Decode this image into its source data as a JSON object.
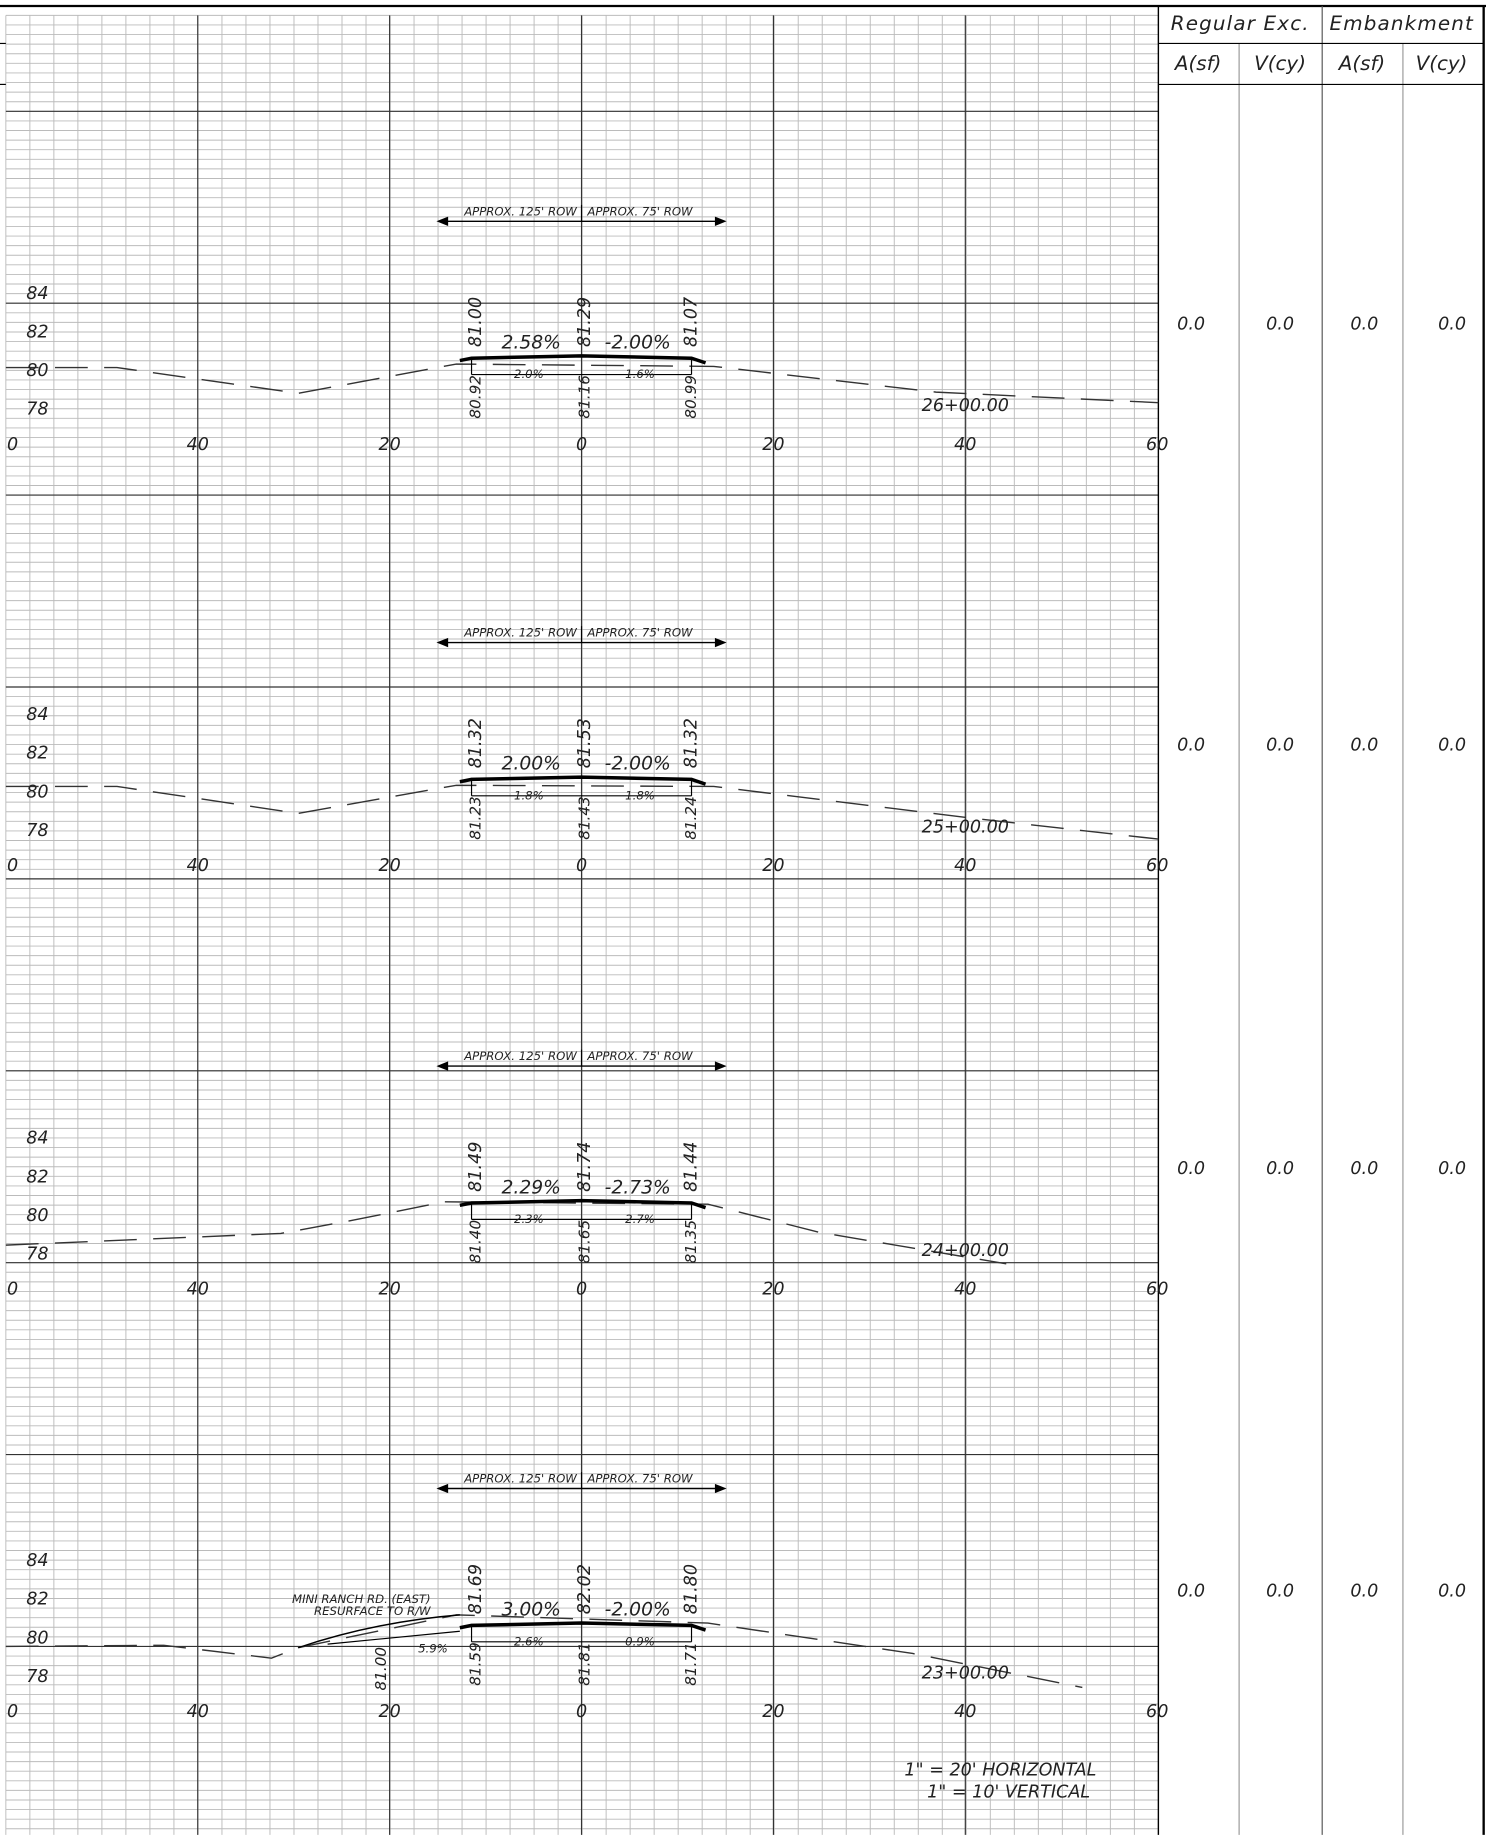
{
  "table": {
    "headers": [
      "Regular Exc.",
      "Embankment"
    ],
    "subheaders": [
      "A(sf)",
      "V(cy)",
      "A(sf)",
      "V(cy)"
    ]
  },
  "sections": [
    {
      "station": "26+00.00",
      "row_left": "APPROX. 125' ROW",
      "row_right": "APPROX. 75' ROW",
      "elevation_labels": [
        "84",
        "82",
        "80",
        "78"
      ],
      "offset_labels": [
        "0",
        "40",
        "20",
        "0",
        "20",
        "40",
        "60"
      ],
      "top_slopes": [
        "2.58%",
        "-2.00%"
      ],
      "bottom_slopes": [
        "2.0%",
        "1.6%"
      ],
      "top_elevations": [
        "81.00",
        "81.29",
        "81.07"
      ],
      "bottom_elevations": [
        "80.92",
        "81.16",
        "80.99"
      ],
      "quantities": [
        "0.0",
        "0.0",
        "0.0",
        "0.0"
      ]
    },
    {
      "station": "25+00.00",
      "row_left": "APPROX. 125' ROW",
      "row_right": "APPROX. 75' ROW",
      "elevation_labels": [
        "84",
        "82",
        "80",
        "78"
      ],
      "offset_labels": [
        "0",
        "40",
        "20",
        "0",
        "20",
        "40",
        "60"
      ],
      "top_slopes": [
        "2.00%",
        "-2.00%"
      ],
      "bottom_slopes": [
        "1.8%",
        "1.8%"
      ],
      "top_elevations": [
        "81.32",
        "81.53",
        "81.32"
      ],
      "bottom_elevations": [
        "81.23",
        "81.43",
        "81.24"
      ],
      "quantities": [
        "0.0",
        "0.0",
        "0.0",
        "0.0"
      ]
    },
    {
      "station": "24+00.00",
      "row_left": "APPROX. 125' ROW",
      "row_right": "APPROX. 75' ROW",
      "elevation_labels": [
        "84",
        "82",
        "80",
        "78"
      ],
      "offset_labels": [
        "0",
        "40",
        "20",
        "0",
        "20",
        "40",
        "60"
      ],
      "top_slopes": [
        "2.29%",
        "-2.73%"
      ],
      "bottom_slopes": [
        "2.3%",
        "2.7%"
      ],
      "top_elevations": [
        "81.49",
        "81.74",
        "81.44"
      ],
      "bottom_elevations": [
        "81.40",
        "81.65",
        "81.35"
      ],
      "quantities": [
        "0.0",
        "0.0",
        "0.0",
        "0.0"
      ]
    },
    {
      "station": "23+00.00",
      "row_left": "APPROX. 125' ROW",
      "row_right": "APPROX. 75' ROW",
      "elevation_labels": [
        "84",
        "82",
        "80",
        "78"
      ],
      "offset_labels": [
        "0",
        "40",
        "20",
        "0",
        "20",
        "40",
        "60"
      ],
      "top_slopes": [
        "3.00%",
        "-2.00%"
      ],
      "bottom_slopes": [
        "2.6%",
        "0.9%"
      ],
      "top_elevations": [
        "81.69",
        "82.02",
        "81.80"
      ],
      "bottom_elevations": [
        "81.59",
        "81.81",
        "81.71"
      ],
      "quantities": [
        "0.0",
        "0.0",
        "0.0",
        "0.0"
      ],
      "notes": [
        "MINI RANCH RD. (EAST)",
        "RESURFACE TO R/W"
      ],
      "extra_slope": "5.9%",
      "extra_elevation": "81.00"
    }
  ],
  "scale": [
    "1\" = 20' HORIZONTAL",
    "1\" = 10' VERTICAL"
  ]
}
